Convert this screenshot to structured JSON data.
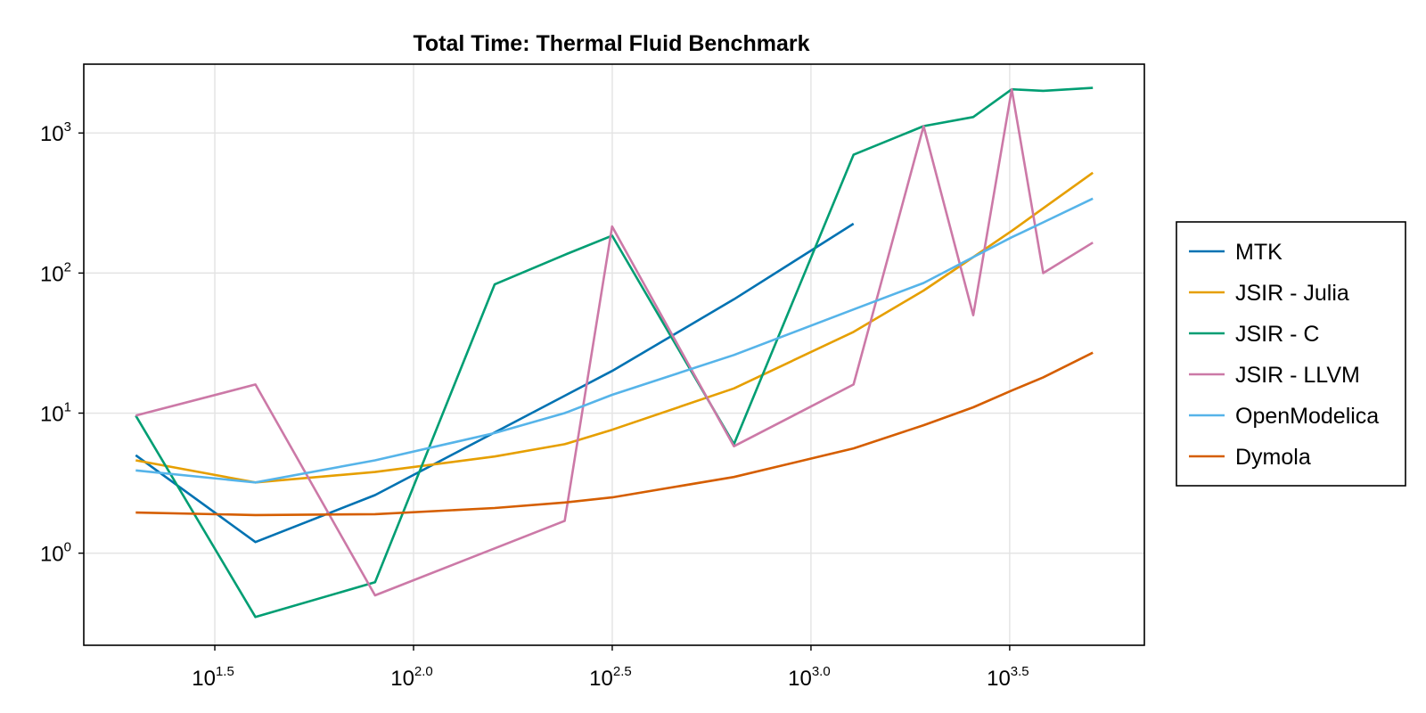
{
  "chart_data": {
    "type": "line",
    "title": "Total Time: Thermal Fluid Benchmark",
    "xlabel": "",
    "ylabel": "",
    "xscale": "log10",
    "yscale": "log10",
    "xlim": [
      14.8,
      6900
    ],
    "ylim": [
      0.22,
      3100
    ],
    "grid": true,
    "legend_position": "right",
    "x_ticks": [
      {
        "base": "10",
        "exp": "1.5",
        "value": 31.62
      },
      {
        "base": "10",
        "exp": "2.0",
        "value": 100
      },
      {
        "base": "10",
        "exp": "2.5",
        "value": 316.2
      },
      {
        "base": "10",
        "exp": "3.0",
        "value": 1000
      },
      {
        "base": "10",
        "exp": "3.5",
        "value": 3162
      }
    ],
    "y_ticks": [
      {
        "base": "10",
        "exp": "0",
        "value": 1
      },
      {
        "base": "10",
        "exp": "1",
        "value": 10
      },
      {
        "base": "10",
        "exp": "2",
        "value": 100
      },
      {
        "base": "10",
        "exp": "3",
        "value": 1000
      }
    ],
    "series": [
      {
        "name": "MTK",
        "color": "#0072b2",
        "x": [
          20,
          40,
          80,
          316,
          640,
          1280
        ],
        "y": [
          5.0,
          1.2,
          2.6,
          20,
          65,
          225
        ]
      },
      {
        "name": "JSIR - Julia",
        "color": "#e69f00",
        "x": [
          20,
          40,
          80,
          160,
          240,
          316,
          640,
          1280,
          1920,
          2560,
          3200,
          3840,
          5120
        ],
        "y": [
          4.6,
          3.2,
          3.8,
          4.9,
          6.0,
          7.6,
          15,
          38,
          75,
          130,
          200,
          290,
          520
        ]
      },
      {
        "name": "JSIR - C",
        "color": "#009e73",
        "x": [
          20,
          40,
          80,
          160,
          240,
          316,
          640,
          1280,
          1920,
          2560,
          3200,
          3840,
          5120
        ],
        "y": [
          9.6,
          0.35,
          0.62,
          83,
          135,
          185,
          6.0,
          700,
          1120,
          1300,
          2050,
          2000,
          2100
        ]
      },
      {
        "name": "JSIR - LLVM",
        "color": "#cc79a7",
        "x": [
          20,
          40,
          80,
          240,
          316,
          640,
          1280,
          1920,
          2560,
          3200,
          3840,
          5120
        ],
        "y": [
          9.6,
          16,
          0.5,
          1.7,
          215,
          5.8,
          16,
          1120,
          50,
          2050,
          100,
          165
        ]
      },
      {
        "name": "OpenModelica",
        "color": "#56b4e9",
        "x": [
          20,
          40,
          80,
          160,
          240,
          316,
          640,
          1280,
          1920,
          2560,
          3200,
          3840,
          5120
        ],
        "y": [
          3.9,
          3.2,
          4.6,
          7.2,
          10,
          13.5,
          26,
          55,
          85,
          130,
          180,
          230,
          340
        ]
      },
      {
        "name": "Dymola",
        "color": "#d55e00",
        "x": [
          20,
          40,
          80,
          160,
          240,
          316,
          640,
          1280,
          1920,
          2560,
          3200,
          3840,
          5120
        ],
        "y": [
          1.95,
          1.87,
          1.9,
          2.1,
          2.3,
          2.5,
          3.5,
          5.6,
          8.2,
          11,
          14.5,
          18,
          27
        ]
      }
    ]
  }
}
